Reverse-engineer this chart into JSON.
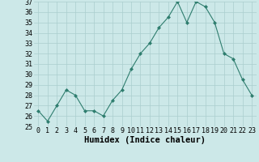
{
  "x": [
    0,
    1,
    2,
    3,
    4,
    5,
    6,
    7,
    8,
    9,
    10,
    11,
    12,
    13,
    14,
    15,
    16,
    17,
    18,
    19,
    20,
    21,
    22,
    23
  ],
  "y": [
    26.5,
    25.5,
    27,
    28.5,
    28,
    26.5,
    26.5,
    26,
    27.5,
    28.5,
    30.5,
    32,
    33,
    34.5,
    35.5,
    37,
    35,
    37,
    36.5,
    35,
    32,
    31.5,
    29.5,
    28
  ],
  "xlabel": "Humidex (Indice chaleur)",
  "ylim": [
    25,
    37
  ],
  "yticks": [
    25,
    26,
    27,
    28,
    29,
    30,
    31,
    32,
    33,
    34,
    35,
    36,
    37
  ],
  "xticks": [
    0,
    1,
    2,
    3,
    4,
    5,
    6,
    7,
    8,
    9,
    10,
    11,
    12,
    13,
    14,
    15,
    16,
    17,
    18,
    19,
    20,
    21,
    22,
    23
  ],
  "line_color": "#2e7d6e",
  "marker": "D",
  "marker_size": 2.0,
  "bg_color": "#cce8e8",
  "grid_color": "#aacece",
  "label_fontsize": 7.5,
  "tick_fontsize": 6.0
}
